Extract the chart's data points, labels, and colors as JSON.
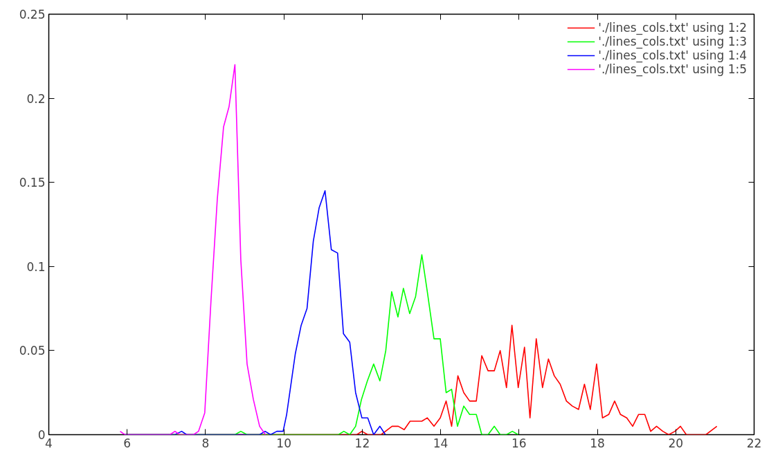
{
  "chart_data": {
    "type": "line",
    "xlim": [
      4,
      22
    ],
    "ylim": [
      0,
      0.25
    ],
    "xticks": [
      4,
      6,
      8,
      10,
      12,
      14,
      16,
      18,
      20,
      22
    ],
    "yticks": [
      0,
      0.05,
      {
        "value": 0.1,
        "label": "0.1"
      },
      0.15,
      {
        "value": 0.2,
        "label": "0.2"
      },
      0.25
    ],
    "grid": false,
    "legend": "top right",
    "marker": "none",
    "line_style": "solid",
    "series": [
      {
        "name": "'./lines_cols.txt' using 1:2",
        "color": "#ff0000",
        "x": [
          5.94,
          11.86,
          11.99,
          12.14,
          12.48,
          12.76,
          12.92,
          13.07,
          13.22,
          13.52,
          13.66,
          13.83,
          13.99,
          14.14,
          14.28,
          14.44,
          14.59,
          14.74,
          14.91,
          15.05,
          15.21,
          15.37,
          15.52,
          15.68,
          15.82,
          15.98,
          16.14,
          16.28,
          16.44,
          16.6,
          16.75,
          16.9,
          17.05,
          17.21,
          17.36,
          17.52,
          17.67,
          17.82,
          17.98,
          18.13,
          18.29,
          18.44,
          18.59,
          18.75,
          18.9,
          19.05,
          19.21,
          19.36,
          19.51,
          19.67,
          19.82,
          19.98,
          20.12,
          20.27,
          20.77,
          21.05
        ],
        "values": [
          0,
          0,
          0.002,
          0,
          0,
          0.005,
          0.005,
          0.003,
          0.008,
          0.008,
          0.01,
          0.005,
          0.01,
          0.02,
          0.005,
          0.035,
          0.025,
          0.02,
          0.02,
          0.047,
          0.038,
          0.038,
          0.05,
          0.028,
          0.065,
          0.028,
          0.052,
          0.01,
          0.057,
          0.028,
          0.045,
          0.035,
          0.03,
          0.02,
          0.017,
          0.015,
          0.03,
          0.015,
          0.042,
          0.01,
          0.012,
          0.02,
          0.012,
          0.01,
          0.005,
          0.012,
          0.012,
          0.002,
          0.005,
          0.002,
          0,
          0.002,
          0.005,
          0,
          0,
          0.005
        ]
      },
      {
        "name": "'./lines_cols.txt' using 1:3",
        "color": "#00ff00",
        "x": [
          5.94,
          8.75,
          8.9,
          9.06,
          11.39,
          11.53,
          11.68,
          11.83,
          11.98,
          12.13,
          12.29,
          12.45,
          12.6,
          12.75,
          12.91,
          13.05,
          13.21,
          13.36,
          13.52,
          13.66,
          13.83,
          13.99,
          14.14,
          14.28,
          14.43,
          14.59,
          14.74,
          14.91,
          15.05,
          15.21,
          15.37,
          15.52,
          15.68,
          15.83,
          15.98
        ],
        "values": [
          0,
          0,
          0.002,
          0,
          0,
          0.002,
          0,
          0.005,
          0.021,
          0.032,
          0.042,
          0.032,
          0.05,
          0.085,
          0.07,
          0.087,
          0.072,
          0.082,
          0.107,
          0.085,
          0.057,
          0.057,
          0.025,
          0.027,
          0.005,
          0.017,
          0.012,
          0.012,
          0,
          0,
          0.005,
          0,
          0,
          0.002,
          0
        ]
      },
      {
        "name": "'./lines_cols.txt' using 1:4",
        "color": "#0000ff",
        "x": [
          5.94,
          7.22,
          7.39,
          7.52,
          9.38,
          9.52,
          9.66,
          9.82,
          9.98,
          10.07,
          10.29,
          10.44,
          10.59,
          10.75,
          10.9,
          11.05,
          11.21,
          11.37,
          11.52,
          11.68,
          11.83,
          11.99,
          12.14,
          12.29,
          12.45,
          12.59
        ],
        "values": [
          0,
          0,
          0.002,
          0,
          0,
          0.002,
          0,
          0.002,
          0.002,
          0.012,
          0.048,
          0.065,
          0.075,
          0.115,
          0.135,
          0.145,
          0.11,
          0.108,
          0.06,
          0.055,
          0.025,
          0.01,
          0.01,
          0,
          0.005,
          0
        ]
      },
      {
        "name": "'./lines_cols.txt' using 1:5",
        "color": "#ff00ff",
        "x": [
          5.82,
          5.94,
          7.09,
          7.22,
          7.34,
          7.69,
          7.82,
          7.98,
          8.14,
          8.3,
          8.46,
          8.6,
          8.75,
          8.9,
          9.06,
          9.22,
          9.38,
          9.53
        ],
        "values": [
          0.002,
          0,
          0,
          0.002,
          0,
          0,
          0.002,
          0.013,
          0.08,
          0.14,
          0.183,
          0.195,
          0.22,
          0.104,
          0.042,
          0.021,
          0.005,
          0
        ]
      }
    ]
  }
}
